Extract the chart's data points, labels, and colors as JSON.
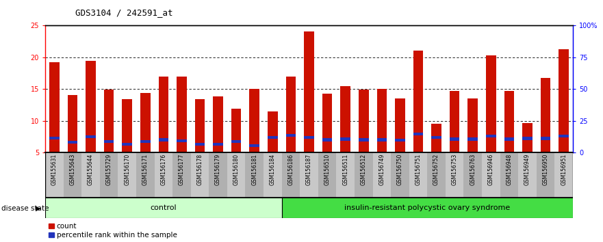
{
  "title": "GDS3104 / 242591_at",
  "samples": [
    "GSM155631",
    "GSM155643",
    "GSM155644",
    "GSM155729",
    "GSM156170",
    "GSM156171",
    "GSM156176",
    "GSM156177",
    "GSM156178",
    "GSM156179",
    "GSM156180",
    "GSM156181",
    "GSM156184",
    "GSM156186",
    "GSM156187",
    "GSM156510",
    "GSM156511",
    "GSM156512",
    "GSM156749",
    "GSM156750",
    "GSM156751",
    "GSM156752",
    "GSM156753",
    "GSM156763",
    "GSM156946",
    "GSM156948",
    "GSM156949",
    "GSM156950",
    "GSM156951"
  ],
  "count_values": [
    19.2,
    14.0,
    19.4,
    14.9,
    13.4,
    14.4,
    17.0,
    16.9,
    13.4,
    13.8,
    11.9,
    15.0,
    11.5,
    17.0,
    24.0,
    14.3,
    15.4,
    14.9,
    15.0,
    13.5,
    21.0,
    9.5,
    14.7,
    13.5,
    20.3,
    14.7,
    9.6,
    16.7,
    21.2
  ],
  "percentile_values": [
    7.3,
    6.6,
    7.5,
    6.7,
    6.3,
    6.7,
    7.0,
    6.8,
    6.3,
    6.3,
    6.7,
    6.1,
    7.4,
    7.7,
    7.4,
    7.0,
    7.1,
    7.0,
    7.0,
    6.9,
    7.9,
    7.4,
    7.1,
    7.1,
    7.6,
    7.1,
    7.2,
    7.2,
    7.6
  ],
  "n_control": 13,
  "n_total": 29,
  "y_min": 5,
  "y_max": 25,
  "yticks_left": [
    5,
    10,
    15,
    20,
    25
  ],
  "yticks_right_vals": [
    0,
    25,
    50,
    75,
    100
  ],
  "yticks_right_labels": [
    "0",
    "25",
    "50",
    "75",
    "100%"
  ],
  "bar_color_red": "#CC1100",
  "bar_color_blue": "#2233BB",
  "tick_bg_even": "#C8C8C8",
  "tick_bg_odd": "#B0B0B0",
  "control_bg": "#CCFFCC",
  "disease_bg": "#44DD44",
  "label_control": "control",
  "label_disease": "insulin-resistant polycystic ovary syndrome",
  "disease_state_label": "disease state",
  "legend_count": "count",
  "legend_percentile": "percentile rank within the sample"
}
